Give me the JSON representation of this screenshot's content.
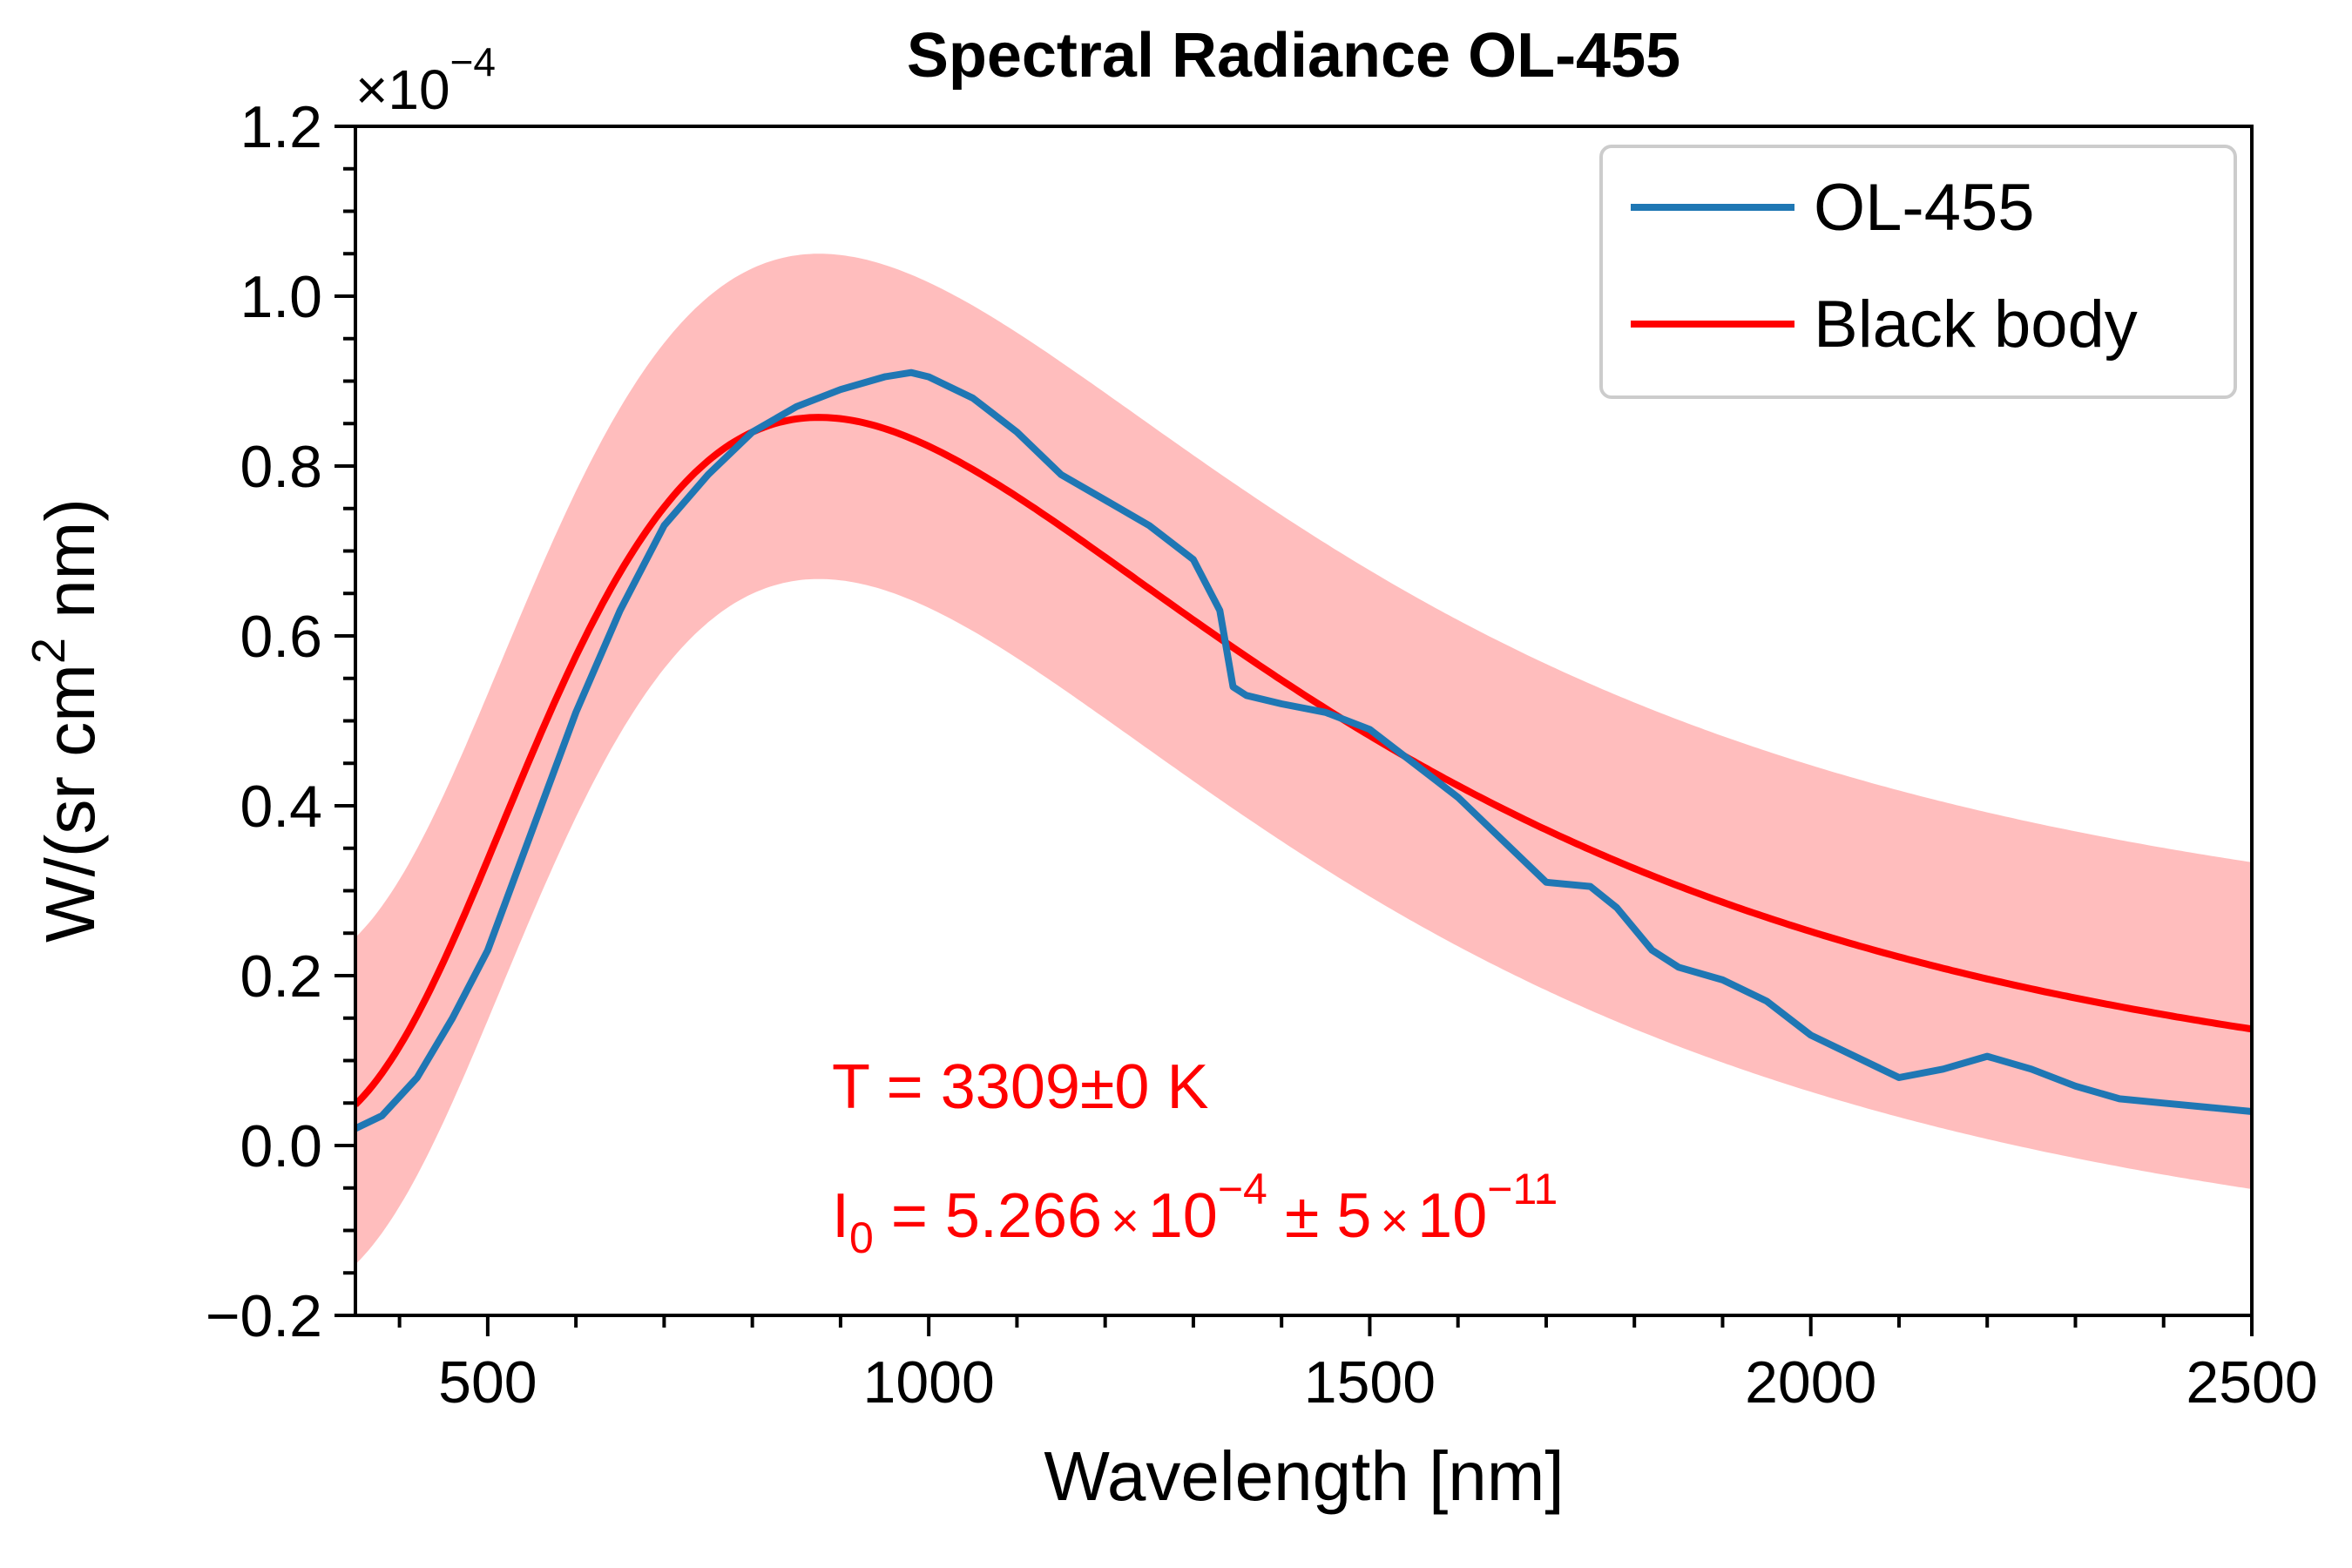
{
  "chart_data": {
    "type": "line",
    "title": "Spectral Radiance OL-455",
    "xlabel": "Wavelength [nm]",
    "ylabel_parts": {
      "pre": "W/(sr cm",
      "sup": "2",
      "post": " nm)"
    },
    "scale_note": {
      "base": "×10",
      "exp": "−4"
    },
    "xlim": [
      350,
      2500
    ],
    "ylim": [
      -0.2,
      1.2
    ],
    "x_ticks": [
      500,
      1000,
      1500,
      2000,
      2500
    ],
    "x_minor_step": 100,
    "y_ticks": [
      -0.2,
      0.0,
      0.2,
      0.4,
      0.6,
      0.8,
      1.0,
      1.2
    ],
    "y_tick_labels": [
      "−0.2",
      "0.0",
      "0.2",
      "0.4",
      "0.6",
      "0.8",
      "1.0",
      "1.2"
    ],
    "y_minor_step": 0.05,
    "grid": false,
    "legend_position": "top-right",
    "series": [
      {
        "name": "OL-455",
        "color": "#1f77b4",
        "x": [
          350,
          380,
          420,
          460,
          500,
          550,
          600,
          650,
          700,
          750,
          800,
          850,
          900,
          950,
          980,
          1000,
          1050,
          1100,
          1150,
          1200,
          1250,
          1300,
          1330,
          1345,
          1360,
          1400,
          1450,
          1500,
          1550,
          1600,
          1650,
          1700,
          1750,
          1780,
          1820,
          1850,
          1900,
          1950,
          2000,
          2050,
          2100,
          2150,
          2200,
          2250,
          2300,
          2350,
          2400,
          2450,
          2500
        ],
        "y": [
          0.02,
          0.035,
          0.08,
          0.15,
          0.23,
          0.37,
          0.51,
          0.63,
          0.73,
          0.79,
          0.84,
          0.87,
          0.89,
          0.905,
          0.91,
          0.905,
          0.88,
          0.84,
          0.79,
          0.76,
          0.73,
          0.69,
          0.63,
          0.54,
          0.53,
          0.52,
          0.51,
          0.49,
          0.45,
          0.41,
          0.36,
          0.31,
          0.305,
          0.28,
          0.23,
          0.21,
          0.195,
          0.17,
          0.13,
          0.105,
          0.08,
          0.09,
          0.105,
          0.09,
          0.07,
          0.055,
          0.05,
          0.045,
          0.04
        ]
      },
      {
        "name": "Black body",
        "color": "#ff0000",
        "temperature_K": 3309,
        "I0": 0.0005266,
        "band": {
          "color": "#ffbdbd",
          "lower_edge": [
            -0.14,
            0.667
          ],
          "upper_edge": [
            0.245,
            1.05
          ]
        }
      }
    ],
    "annotations": [
      {
        "text": "T = 3309±0 K",
        "color": "#ff0000"
      },
      {
        "pre": "I",
        "sub": "0",
        "mid": " = 5.266",
        "times": "×",
        "ten": "10",
        "exp1": "−4",
        "pm": " ± 5",
        "times2": "×",
        "ten2": "10",
        "exp2": "−11",
        "color": "#ff0000"
      }
    ]
  }
}
